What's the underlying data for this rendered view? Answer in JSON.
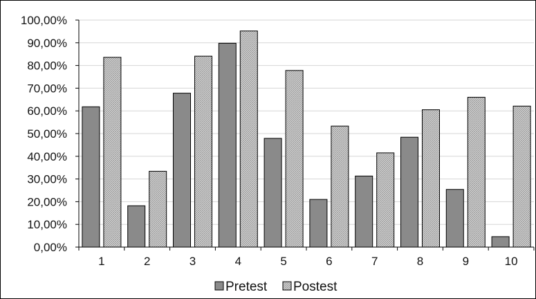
{
  "chart_data": {
    "type": "bar",
    "categories": [
      "1",
      "2",
      "3",
      "4",
      "5",
      "6",
      "7",
      "8",
      "9",
      "10"
    ],
    "series": [
      {
        "name": "Pretest",
        "color": "#8a8a8a",
        "pattern": "solid",
        "values": [
          61.8,
          18.2,
          67.8,
          89.8,
          47.9,
          21.0,
          31.3,
          48.4,
          25.4,
          4.6
        ]
      },
      {
        "name": "Postest",
        "color": "#c8c8c8",
        "pattern": "hatched",
        "values": [
          83.6,
          33.4,
          84.1,
          95.2,
          77.8,
          53.3,
          41.5,
          60.5,
          66.0,
          62.1
        ]
      }
    ],
    "y_ticks": [
      "0,00%",
      "10,00%",
      "20,00%",
      "30,00%",
      "40,00%",
      "50,00%",
      "60,00%",
      "70,00%",
      "80,00%",
      "90,00%",
      "100,00%"
    ],
    "ylim": [
      0,
      100
    ],
    "grid": true,
    "legend_position": "bottom"
  }
}
